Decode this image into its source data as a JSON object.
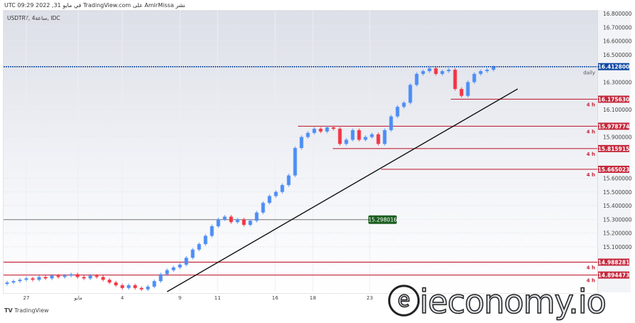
{
  "header": {
    "published": "UTC في مايو 31, 2022 09:29 TradingView.com على AmirMissa نشر",
    "symbol": "USDTRY, ساعة4, IDC"
  },
  "colors": {
    "up": "#4d8ef5",
    "down": "#f23645",
    "level": "#c4283c",
    "current": "#0d47a1",
    "green_label": "#1b5e20"
  },
  "price_axis": {
    "max": 16.8,
    "min": 14.8,
    "ticks": [
      "16.800000",
      "16.700000",
      "16.600000",
      "16.500000",
      "16.300000",
      "16.100000",
      "15.900000",
      "15.600000",
      "15.500000",
      "15.400000",
      "15.300000",
      "15.200000",
      "15.100000"
    ]
  },
  "time_axis": [
    "27",
    "مايو",
    "4",
    "9",
    "11",
    "16",
    "18",
    "23"
  ],
  "current_price": {
    "value": "16.412800",
    "note": "daily"
  },
  "levels": [
    {
      "value": "16.175630",
      "tag": "4 h"
    },
    {
      "value": "15.978774",
      "tag": "4 h"
    },
    {
      "value": "15.815915",
      "tag": "4 h"
    },
    {
      "value": "15.665023",
      "tag": "4 h"
    },
    {
      "value": "14.988281",
      "tag": "4 h"
    },
    {
      "value": "14.894473",
      "tag": "4 h"
    }
  ],
  "support_label": "15.298016",
  "closes": [
    14.84,
    14.85,
    14.86,
    14.87,
    14.86,
    14.88,
    14.87,
    14.89,
    14.88,
    14.89,
    14.9,
    14.88,
    14.87,
    14.89,
    14.88,
    14.86,
    14.84,
    14.82,
    14.8,
    14.82,
    14.8,
    14.79,
    14.81,
    14.85,
    14.9,
    14.93,
    14.95,
    14.97,
    15.02,
    15.08,
    15.12,
    15.18,
    15.25,
    15.3,
    15.32,
    15.28,
    15.3,
    15.26,
    15.29,
    15.35,
    15.42,
    15.47,
    15.5,
    15.55,
    15.62,
    15.82,
    15.9,
    15.93,
    15.96,
    15.94,
    15.97,
    15.96,
    15.85,
    15.88,
    15.95,
    15.88,
    15.9,
    15.92,
    15.85,
    15.95,
    16.05,
    16.12,
    16.15,
    16.28,
    16.36,
    16.38,
    16.4,
    16.36,
    16.38,
    16.39,
    16.25,
    16.2,
    16.3,
    16.36,
    16.38,
    16.39,
    16.41
  ],
  "footer": {
    "brand": "TradingView"
  },
  "watermark": "ieconomy.io"
}
